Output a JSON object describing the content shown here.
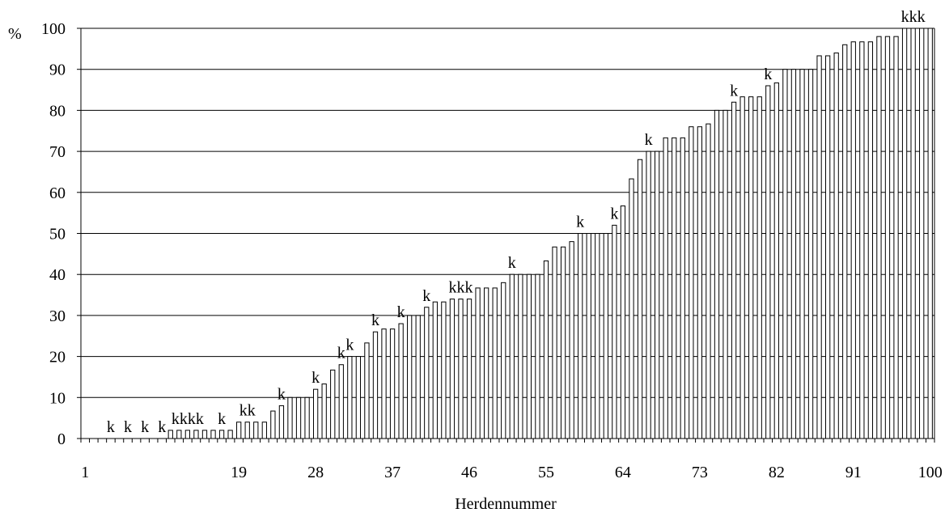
{
  "chart_data": {
    "type": "bar",
    "ylabel": "%",
    "xlabel": "Herdennummer",
    "ylim": [
      0,
      100
    ],
    "yticks": [
      0,
      10,
      20,
      30,
      40,
      50,
      60,
      70,
      80,
      90,
      100
    ],
    "xtick_labels": [
      "1",
      "19",
      "28",
      "37",
      "46",
      "55",
      "64",
      "73",
      "82",
      "91",
      "100"
    ],
    "xtick_label_herds": [
      1,
      19,
      28,
      37,
      46,
      55,
      64,
      73,
      82,
      91,
      100
    ],
    "grid": "horizontal",
    "bar_color": "#ffffff",
    "bar_stroke": "#000000",
    "x": [
      1,
      2,
      3,
      4,
      5,
      6,
      7,
      8,
      9,
      10,
      11,
      12,
      13,
      14,
      15,
      16,
      17,
      18,
      19,
      20,
      21,
      22,
      23,
      24,
      25,
      26,
      27,
      28,
      29,
      30,
      31,
      32,
      33,
      34,
      35,
      36,
      37,
      38,
      39,
      40,
      41,
      42,
      43,
      44,
      45,
      46,
      47,
      48,
      49,
      50,
      51,
      52,
      53,
      54,
      55,
      56,
      57,
      58,
      59,
      60,
      61,
      62,
      63,
      64,
      65,
      66,
      67,
      68,
      69,
      70,
      71,
      72,
      73,
      74,
      75,
      76,
      77,
      78,
      79,
      80,
      81,
      82,
      83,
      84,
      85,
      86,
      87,
      88,
      89,
      90,
      91,
      92,
      93,
      94,
      95,
      96,
      97,
      98,
      99,
      100
    ],
    "values": [
      0,
      0,
      0,
      0,
      0,
      0,
      0,
      0,
      0,
      0,
      2,
      2,
      2,
      2,
      2,
      2,
      2,
      2,
      4,
      4,
      4,
      4,
      6.7,
      8,
      10,
      10,
      10,
      12,
      13.3,
      16.7,
      18,
      20,
      20,
      23.3,
      26,
      26.7,
      26.7,
      28,
      30,
      30,
      32,
      33.3,
      33.3,
      34,
      34,
      34,
      36.7,
      36.7,
      36.7,
      38,
      40,
      40,
      40,
      40,
      43.3,
      46.7,
      46.7,
      48,
      50,
      50,
      50,
      50,
      52,
      56.7,
      63.3,
      68,
      70,
      70,
      73.3,
      73.3,
      73.3,
      76,
      76,
      76.7,
      80,
      80,
      82,
      83.3,
      83.3,
      83.3,
      86,
      86.7,
      90,
      90,
      90,
      90,
      93.3,
      93.3,
      94,
      96,
      96.7,
      96.7,
      96.7,
      98,
      98,
      98,
      100,
      100,
      100,
      100
    ],
    "annotations": [
      {
        "herd": 4,
        "text": "k"
      },
      {
        "herd": 6,
        "text": "k"
      },
      {
        "herd": 8,
        "text": "k"
      },
      {
        "herd": 10,
        "text": "k"
      },
      {
        "herd": 13,
        "text": "kkkk"
      },
      {
        "herd": 17,
        "text": "k"
      },
      {
        "herd": 20,
        "text": "kk"
      },
      {
        "herd": 24,
        "text": "k"
      },
      {
        "herd": 28,
        "text": "k"
      },
      {
        "herd": 31,
        "text": "k"
      },
      {
        "herd": 32,
        "text": "k"
      },
      {
        "herd": 35,
        "text": "k"
      },
      {
        "herd": 38,
        "text": "k"
      },
      {
        "herd": 41,
        "text": "k"
      },
      {
        "herd": 45,
        "text": "kkk"
      },
      {
        "herd": 51,
        "text": "k"
      },
      {
        "herd": 59,
        "text": "k"
      },
      {
        "herd": 63,
        "text": "k"
      },
      {
        "herd": 67,
        "text": "k"
      },
      {
        "herd": 77,
        "text": "k"
      },
      {
        "herd": 81,
        "text": "k"
      },
      {
        "herd": 98,
        "text": "kkk"
      }
    ]
  }
}
